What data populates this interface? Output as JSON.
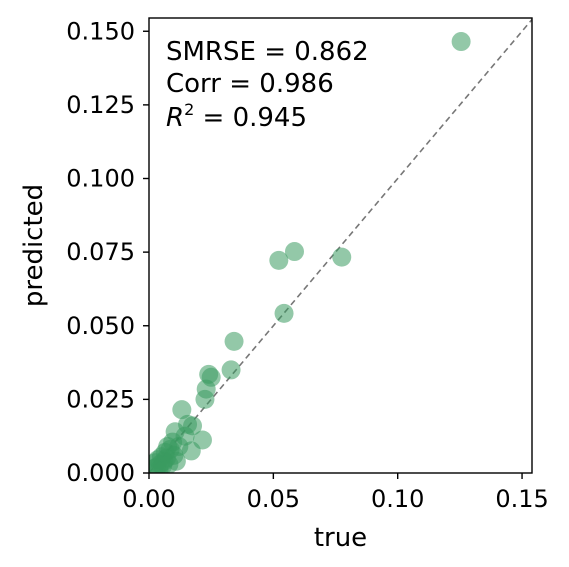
{
  "chart_data": {
    "type": "scatter",
    "title": "",
    "xlabel": "true",
    "ylabel": "predicted",
    "xlim": [
      0,
      0.154
    ],
    "ylim": [
      0,
      0.1545
    ],
    "xticks": [
      0.0,
      0.05,
      0.1,
      0.15
    ],
    "xtick_labels": [
      "0.00",
      "0.05",
      "0.10",
      "0.15"
    ],
    "yticks": [
      0.0,
      0.025,
      0.05,
      0.075,
      0.1,
      0.125,
      0.15
    ],
    "ytick_labels": [
      "0.000",
      "0.025",
      "0.050",
      "0.075",
      "0.100",
      "0.125",
      "0.150"
    ],
    "grid": false,
    "reference_line": {
      "style": "dashed",
      "color": "#777777",
      "from": [
        0,
        0
      ],
      "to": [
        0.154,
        0.154
      ]
    },
    "stats": {
      "smrse": "SMRSE = 0.862",
      "corr": "Corr = 0.986",
      "r2_symbol": "R",
      "r2_exp": "2",
      "r2_value": " = 0.945"
    },
    "marker_color": "#3a9a60",
    "points": [
      {
        "x": 0.1255,
        "y": 0.1465
      },
      {
        "x": 0.0775,
        "y": 0.0733
      },
      {
        "x": 0.0585,
        "y": 0.0752
      },
      {
        "x": 0.0522,
        "y": 0.0722
      },
      {
        "x": 0.0543,
        "y": 0.0542
      },
      {
        "x": 0.0342,
        "y": 0.0447
      },
      {
        "x": 0.033,
        "y": 0.035
      },
      {
        "x": 0.025,
        "y": 0.0325
      },
      {
        "x": 0.024,
        "y": 0.0335
      },
      {
        "x": 0.023,
        "y": 0.0285
      },
      {
        "x": 0.0225,
        "y": 0.025
      },
      {
        "x": 0.0132,
        "y": 0.0215
      },
      {
        "x": 0.0215,
        "y": 0.0112
      },
      {
        "x": 0.0175,
        "y": 0.016
      },
      {
        "x": 0.0155,
        "y": 0.0165
      },
      {
        "x": 0.0145,
        "y": 0.0125
      },
      {
        "x": 0.017,
        "y": 0.0075
      },
      {
        "x": 0.0105,
        "y": 0.014
      },
      {
        "x": 0.0095,
        "y": 0.0105
      },
      {
        "x": 0.012,
        "y": 0.009
      },
      {
        "x": 0.0085,
        "y": 0.008
      },
      {
        "x": 0.0075,
        "y": 0.009
      },
      {
        "x": 0.0065,
        "y": 0.007
      },
      {
        "x": 0.007,
        "y": 0.005
      },
      {
        "x": 0.01,
        "y": 0.006
      },
      {
        "x": 0.006,
        "y": 0.004
      },
      {
        "x": 0.005,
        "y": 0.0055
      },
      {
        "x": 0.0045,
        "y": 0.003
      },
      {
        "x": 0.0035,
        "y": 0.0045
      },
      {
        "x": 0.003,
        "y": 0.002
      },
      {
        "x": 0.0025,
        "y": 0.0035
      },
      {
        "x": 0.002,
        "y": 0.0015
      },
      {
        "x": 0.008,
        "y": 0.003
      },
      {
        "x": 0.011,
        "y": 0.004
      },
      {
        "x": 0.004,
        "y": 0.001
      },
      {
        "x": 0.0055,
        "y": 0.0025
      }
    ]
  }
}
